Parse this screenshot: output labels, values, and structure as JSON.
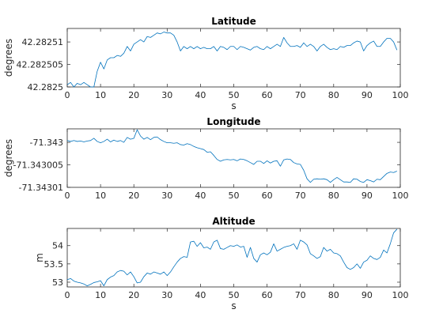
{
  "chart_data": [
    {
      "type": "line",
      "title": "Latitude",
      "xlabel": "s",
      "ylabel": "degrees",
      "xlim": [
        0,
        100
      ],
      "ylim": [
        42.2825,
        42.282513
      ],
      "xticks": [
        "0",
        "10",
        "20",
        "30",
        "40",
        "50",
        "60",
        "70",
        "80",
        "90",
        "100"
      ],
      "yticks": [
        {
          "value": 42.2825,
          "label": "42.2825"
        },
        {
          "value": 42.282505,
          "label": "42.282505"
        },
        {
          "value": 42.28251,
          "label": "42.28251"
        }
      ],
      "grid": false,
      "series": [
        {
          "color": "#0072bd",
          "x": [
            0,
            1,
            2,
            3,
            4,
            5,
            6,
            7,
            8,
            9,
            10,
            11,
            12,
            13,
            14,
            15,
            16,
            17,
            18,
            19,
            20,
            21,
            22,
            23,
            24,
            25,
            26,
            27,
            28,
            29,
            30,
            31,
            32,
            33,
            34,
            35,
            36,
            37,
            38,
            39,
            40,
            41,
            42,
            43,
            44,
            45,
            46,
            47,
            48,
            49,
            50,
            51,
            52,
            53,
            54,
            55,
            56,
            57,
            58,
            59,
            60,
            61,
            62,
            63,
            64,
            65,
            66,
            67,
            68,
            69,
            70,
            71,
            72,
            73,
            74,
            75,
            76,
            77,
            78,
            79,
            80,
            81,
            82,
            83,
            84,
            85,
            86,
            87,
            88,
            89,
            90,
            91,
            92,
            93,
            94,
            95,
            96,
            97,
            98,
            99
          ],
          "y": [
            42.2825005,
            42.282501,
            42.2825,
            42.2825008,
            42.2825005,
            42.282501,
            42.2825005,
            42.2825,
            42.2825,
            42.2825035,
            42.2825055,
            42.282504,
            42.282506,
            42.2825065,
            42.2825065,
            42.282507,
            42.2825068,
            42.2825075,
            42.282509,
            42.282508,
            42.2825095,
            42.28251,
            42.2825105,
            42.28251,
            42.2825112,
            42.282511,
            42.2825115,
            42.282512,
            42.2825118,
            42.2825122,
            42.282512,
            42.282512,
            42.2825115,
            42.28251,
            42.282508,
            42.282509,
            42.2825085,
            42.282509,
            42.2825085,
            42.282509,
            42.2825085,
            42.2825088,
            42.2825085,
            42.2825085,
            42.282509,
            42.282508,
            42.282509,
            42.2825088,
            42.2825083,
            42.282509,
            42.282509,
            42.2825083,
            42.282509,
            42.2825088,
            42.2825085,
            42.2825082,
            42.2825088,
            42.282509,
            42.2825085,
            42.2825083,
            42.282509,
            42.2825085,
            42.282509,
            42.2825095,
            42.282509,
            42.282511,
            42.2825098,
            42.282509,
            42.282509,
            42.2825092,
            42.2825088,
            42.2825098,
            42.282509,
            42.2825095,
            42.282509,
            42.282508,
            42.282509,
            42.2825095,
            42.2825088,
            42.2825083,
            42.2825085,
            42.2825083,
            42.282509,
            42.2825088,
            42.2825092,
            42.2825092,
            42.2825098,
            42.2825102,
            42.28251,
            42.282508,
            42.2825092,
            42.2825098,
            42.2825102,
            42.282509,
            42.282509,
            42.28251,
            42.2825108,
            42.2825108,
            42.28251,
            42.2825082
          ]
        }
      ]
    },
    {
      "type": "line",
      "title": "Longitude",
      "xlabel": "",
      "ylabel": "degrees",
      "xlim": [
        0,
        100
      ],
      "ylim": [
        -71.34301,
        -71.342997
      ],
      "xticks": [
        "0",
        "10",
        "20",
        "30",
        "40",
        "50",
        "60",
        "70",
        "80",
        "90",
        "100"
      ],
      "yticks": [
        {
          "value": -71.343,
          "label": "-71.343"
        },
        {
          "value": -71.343005,
          "label": "-71.343005"
        },
        {
          "value": -71.34301,
          "label": "-71.34301"
        }
      ],
      "grid": false,
      "series": [
        {
          "color": "#0072bd",
          "x": [
            0,
            1,
            2,
            3,
            4,
            5,
            6,
            7,
            8,
            9,
            10,
            11,
            12,
            13,
            14,
            15,
            16,
            17,
            18,
            19,
            20,
            21,
            22,
            23,
            24,
            25,
            26,
            27,
            28,
            29,
            30,
            31,
            32,
            33,
            34,
            35,
            36,
            37,
            38,
            39,
            40,
            41,
            42,
            43,
            44,
            45,
            46,
            47,
            48,
            49,
            50,
            51,
            52,
            53,
            54,
            55,
            56,
            57,
            58,
            59,
            60,
            61,
            62,
            63,
            64,
            65,
            66,
            67,
            68,
            69,
            70,
            71,
            72,
            73,
            74,
            75,
            76,
            77,
            78,
            79,
            80,
            81,
            82,
            83,
            84,
            85,
            86,
            87,
            88,
            89,
            90,
            91,
            92,
            93,
            94,
            95,
            96,
            97,
            98,
            99
          ],
          "y": [
            -71.3429996,
            -71.3429998,
            -71.3429996,
            -71.3429998,
            -71.3429997,
            -71.3429999,
            -71.3429997,
            -71.3429996,
            -71.3429991,
            -71.3429998,
            -71.3430001,
            -71.3429998,
            -71.3429993,
            -71.3429999,
            -71.3429995,
            -71.3429998,
            -71.3429996,
            -71.343,
            -71.3429989,
            -71.3429993,
            -71.3429991,
            -71.3429972,
            -71.3429986,
            -71.3429993,
            -71.3429989,
            -71.3429994,
            -71.3429989,
            -71.3429988,
            -71.3429994,
            -71.3429998,
            -71.3430001,
            -71.3430001,
            -71.3430002,
            -71.3430001,
            -71.3430005,
            -71.3430006,
            -71.3430003,
            -71.3430005,
            -71.3430009,
            -71.3430012,
            -71.3430014,
            -71.3430016,
            -71.3430022,
            -71.3430021,
            -71.3430029,
            -71.3430038,
            -71.3430042,
            -71.3430039,
            -71.3430038,
            -71.3430039,
            -71.3430038,
            -71.3430041,
            -71.3430037,
            -71.3430038,
            -71.3430041,
            -71.3430045,
            -71.3430049,
            -71.3430042,
            -71.3430042,
            -71.3430047,
            -71.3430041,
            -71.3430046,
            -71.3430042,
            -71.3430041,
            -71.3430053,
            -71.3430039,
            -71.3430037,
            -71.3430038,
            -71.3430045,
            -71.3430048,
            -71.3430049,
            -71.3430062,
            -71.3430081,
            -71.3430089,
            -71.3430082,
            -71.3430081,
            -71.3430082,
            -71.3430081,
            -71.3430083,
            -71.3430089,
            -71.3430083,
            -71.3430078,
            -71.3430083,
            -71.3430088,
            -71.3430088,
            -71.3430089,
            -71.3430081,
            -71.3430082,
            -71.3430087,
            -71.3430089,
            -71.3430083,
            -71.3430085,
            -71.3430088,
            -71.3430082,
            -71.3430083,
            -71.3430076,
            -71.3430069,
            -71.3430066,
            -71.3430067,
            -71.3430064
          ]
        }
      ]
    },
    {
      "type": "line",
      "title": "Altitude",
      "xlabel": "s",
      "ylabel": "m",
      "xlim": [
        0,
        100
      ],
      "ylim": [
        52.87,
        54.47
      ],
      "xticks": [
        "0",
        "10",
        "20",
        "30",
        "40",
        "50",
        "60",
        "70",
        "80",
        "90",
        "100"
      ],
      "yticks": [
        {
          "value": 53,
          "label": "53"
        },
        {
          "value": 53.5,
          "label": "53.5"
        },
        {
          "value": 54,
          "label": "54"
        }
      ],
      "grid": false,
      "series": [
        {
          "color": "#0072bd",
          "x": [
            0,
            1,
            2,
            3,
            4,
            5,
            6,
            7,
            8,
            9,
            10,
            11,
            12,
            13,
            14,
            15,
            16,
            17,
            18,
            19,
            20,
            21,
            22,
            23,
            24,
            25,
            26,
            27,
            28,
            29,
            30,
            31,
            32,
            33,
            34,
            35,
            36,
            37,
            38,
            39,
            40,
            41,
            42,
            43,
            44,
            45,
            46,
            47,
            48,
            49,
            50,
            51,
            52,
            53,
            54,
            55,
            56,
            57,
            58,
            59,
            60,
            61,
            62,
            63,
            64,
            65,
            66,
            67,
            68,
            69,
            70,
            71,
            72,
            73,
            74,
            75,
            76,
            77,
            78,
            79,
            80,
            81,
            82,
            83,
            84,
            85,
            86,
            87,
            88,
            89,
            90,
            91,
            92,
            93,
            94,
            95,
            96,
            97,
            98,
            99
          ],
          "y": [
            53.07,
            53.1,
            53.03,
            53.0,
            52.98,
            52.95,
            52.9,
            52.94,
            52.99,
            53.01,
            53.04,
            52.9,
            53.07,
            53.14,
            53.18,
            53.28,
            53.32,
            53.3,
            53.2,
            53.28,
            53.15,
            52.98,
            53.0,
            53.15,
            53.25,
            53.22,
            53.28,
            53.25,
            53.22,
            53.28,
            53.18,
            53.28,
            53.42,
            53.55,
            53.65,
            53.7,
            53.68,
            54.1,
            54.12,
            53.98,
            54.08,
            53.94,
            53.96,
            53.9,
            54.1,
            54.15,
            53.92,
            53.9,
            53.95,
            54.0,
            53.98,
            54.02,
            53.96,
            53.98,
            53.68,
            53.95,
            53.65,
            53.55,
            53.75,
            53.8,
            53.75,
            53.82,
            54.05,
            53.85,
            53.9,
            53.95,
            53.98,
            54.0,
            54.05,
            53.9,
            54.15,
            54.1,
            54.02,
            53.78,
            53.72,
            53.65,
            53.7,
            53.95,
            53.85,
            53.9,
            53.8,
            53.78,
            53.72,
            53.55,
            53.4,
            53.35,
            53.4,
            53.5,
            53.38,
            53.55,
            53.6,
            53.72,
            53.65,
            53.62,
            53.68,
            53.88,
            53.8,
            54.05,
            54.35,
            54.45
          ]
        }
      ]
    }
  ]
}
